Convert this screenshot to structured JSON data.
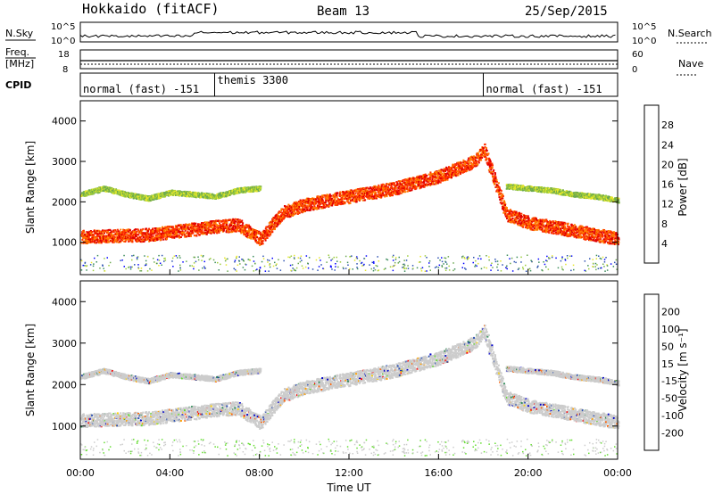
{
  "header": {
    "title": "Hokkaido (fitACF)",
    "beam": "Beam 13",
    "date": "25/Sep/2015"
  },
  "top_panels": {
    "nsky": {
      "left_label": "N.Sky",
      "right_label": "N.Search",
      "left_ticks": [
        "10^5",
        "10^0"
      ],
      "right_ticks": [
        "10^5",
        "10^0"
      ]
    },
    "freq": {
      "left_label_1": "Freq.",
      "left_label_2": "[MHz]",
      "left_ticks": [
        "18",
        "8"
      ],
      "right_ticks": [
        "60",
        "0"
      ],
      "right_label": "Nave"
    },
    "cpid": {
      "label": "CPID",
      "segments": [
        {
          "text": "normal (fast) -151",
          "start_hour": 0,
          "end_hour": 6
        },
        {
          "text": "themis 3300",
          "start_hour": 6,
          "end_hour": 18
        },
        {
          "text": "normal (fast) -151",
          "start_hour": 18,
          "end_hour": 24
        }
      ]
    }
  },
  "colorbars": {
    "power": {
      "title": "Power [dB]",
      "ticks": [
        "28",
        "24",
        "20",
        "16",
        "12",
        "8",
        "4"
      ],
      "colors": [
        "#0000ff",
        "#2a4fb0",
        "#3a8a5a",
        "#6aa84f",
        "#9ccc3a",
        "#e6e62a",
        "#ffb020",
        "#ff7a00",
        "#ff3000",
        "#e00000"
      ]
    },
    "velocity": {
      "title": "Velocity [m s⁻¹]",
      "ticks": [
        "200",
        "100",
        "50",
        "15",
        "-15",
        "-50",
        "-100",
        "-200"
      ],
      "colors": [
        "#ff0000",
        "#ff6000",
        "#ffa000",
        "#ffd200",
        "#cccccc",
        "#66dd33",
        "#2e8b57",
        "#2a4fb0",
        "#0000cc"
      ]
    }
  },
  "chart_data": [
    {
      "type": "heatmap",
      "parameter": "Power",
      "ylabel": "Slant Range [km]",
      "xlabel": "Time UT",
      "xlim": [
        0,
        24
      ],
      "ylim": [
        200,
        4500
      ],
      "yticks": [
        1000,
        2000,
        3000,
        4000
      ],
      "xticks": [
        "00:00",
        "04:00",
        "08:00",
        "12:00",
        "16:00",
        "20:00",
        "00:00"
      ],
      "bands": [
        {
          "name": "main",
          "start_hour": 0,
          "end_hour": 24,
          "range_km": [
            [
              0,
              1150
            ],
            [
              3,
              1200
            ],
            [
              6,
              1400
            ],
            [
              7,
              1450
            ],
            [
              8,
              1100
            ],
            [
              9,
              1750
            ],
            [
              10,
              1950
            ],
            [
              12,
              2150
            ],
            [
              14,
              2350
            ],
            [
              16,
              2650
            ],
            [
              17.5,
              3000
            ],
            [
              18,
              3300
            ],
            [
              19,
              1700
            ],
            [
              20,
              1500
            ],
            [
              22,
              1300
            ],
            [
              24,
              1100
            ]
          ]
        },
        {
          "name": "upper",
          "start_hour": 0,
          "end_hour": 8,
          "range_km": [
            [
              0,
              2200
            ],
            [
              1,
              2350
            ],
            [
              2,
              2200
            ],
            [
              3,
              2100
            ],
            [
              4,
              2250
            ],
            [
              5,
              2200
            ],
            [
              6,
              2150
            ],
            [
              7,
              2300
            ],
            [
              8,
              2350
            ]
          ]
        },
        {
          "name": "upper-evening",
          "start_hour": 19,
          "end_hour": 24,
          "range_km": [
            [
              19,
              2400
            ],
            [
              20,
              2350
            ],
            [
              21,
              2300
            ],
            [
              22,
              2200
            ],
            [
              23,
              2150
            ],
            [
              24,
              2050
            ]
          ]
        }
      ]
    },
    {
      "type": "heatmap",
      "parameter": "Velocity",
      "ylabel": "Slant Range [km]",
      "xlabel": "Time UT",
      "xlim": [
        0,
        24
      ],
      "ylim": [
        200,
        4500
      ],
      "yticks": [
        1000,
        2000,
        3000,
        4000
      ],
      "xticks": [
        "00:00",
        "04:00",
        "08:00",
        "12:00",
        "16:00",
        "20:00",
        "00:00"
      ]
    }
  ]
}
